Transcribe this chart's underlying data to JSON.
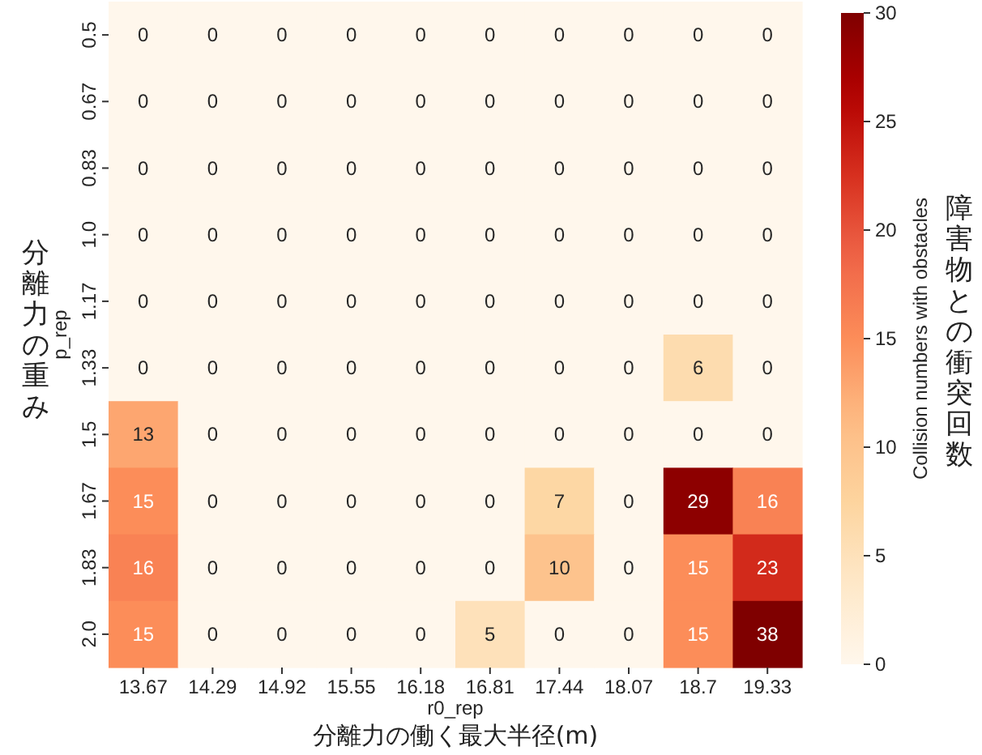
{
  "chart_data": {
    "type": "heatmap",
    "xlabel": "r0_rep",
    "ylabel": "p_rep",
    "clabel": "Collision numbers with obstacles",
    "categories": [
      "13.67",
      "14.29",
      "14.92",
      "15.55",
      "16.18",
      "16.81",
      "17.44",
      "18.07",
      "18.7",
      "19.33"
    ],
    "y_categories": [
      "0.5",
      "0.67",
      "0.83",
      "1.0",
      "1.17",
      "1.33",
      "1.5",
      "1.67",
      "1.83",
      "2.0"
    ],
    "cells": [
      [
        0,
        0,
        0,
        0,
        0,
        0,
        0,
        0,
        0,
        0
      ],
      [
        0,
        0,
        0,
        0,
        0,
        0,
        0,
        0,
        0,
        0
      ],
      [
        0,
        0,
        0,
        0,
        0,
        0,
        0,
        0,
        0,
        0
      ],
      [
        0,
        0,
        0,
        0,
        0,
        0,
        0,
        0,
        0,
        0
      ],
      [
        0,
        0,
        0,
        0,
        0,
        0,
        0,
        0,
        0,
        0
      ],
      [
        0,
        0,
        0,
        0,
        0,
        0,
        0,
        0,
        6,
        0
      ],
      [
        13,
        0,
        0,
        0,
        0,
        0,
        0,
        0,
        0,
        0
      ],
      [
        15,
        0,
        0,
        0,
        0,
        0,
        7,
        0,
        29,
        16
      ],
      [
        16,
        0,
        0,
        0,
        0,
        0,
        10,
        0,
        15,
        23
      ],
      [
        15,
        0,
        0,
        0,
        0,
        5,
        0,
        0,
        15,
        38
      ]
    ],
    "data_labels": true,
    "clim": [
      0,
      30
    ],
    "cticks": [
      0,
      5,
      10,
      15,
      20,
      25,
      30
    ],
    "annotations": [
      "分離力の働く最大半径(m)",
      "分離力の重み",
      "障害物との衝突回数"
    ]
  }
}
